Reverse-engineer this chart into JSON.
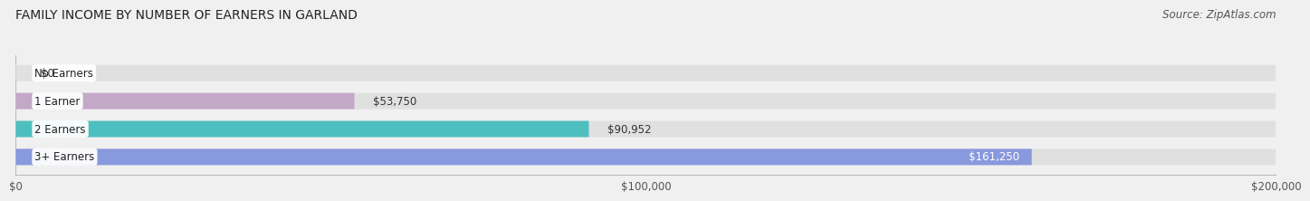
{
  "title": "FAMILY INCOME BY NUMBER OF EARNERS IN GARLAND",
  "source": "Source: ZipAtlas.com",
  "categories": [
    "No Earners",
    "1 Earner",
    "2 Earners",
    "3+ Earners"
  ],
  "values": [
    0,
    53750,
    90952,
    161250
  ],
  "labels": [
    "$0",
    "$53,750",
    "$90,952",
    "$161,250"
  ],
  "bar_colors": [
    "#a8c8e8",
    "#c4a8c8",
    "#4dbfbf",
    "#8899dd"
  ],
  "bg_color": "#f0f0f0",
  "bar_bg_color": "#e0e0e0",
  "xlim": [
    0,
    200000
  ],
  "xticks": [
    0,
    100000,
    200000
  ],
  "xticklabels": [
    "$0",
    "$100,000",
    "$200,000"
  ],
  "title_fontsize": 10,
  "source_fontsize": 8.5,
  "bar_height": 0.58,
  "label_fontsize": 8.5,
  "value_label_color_inside": "#ffffff",
  "value_label_color_outside": "#333333"
}
